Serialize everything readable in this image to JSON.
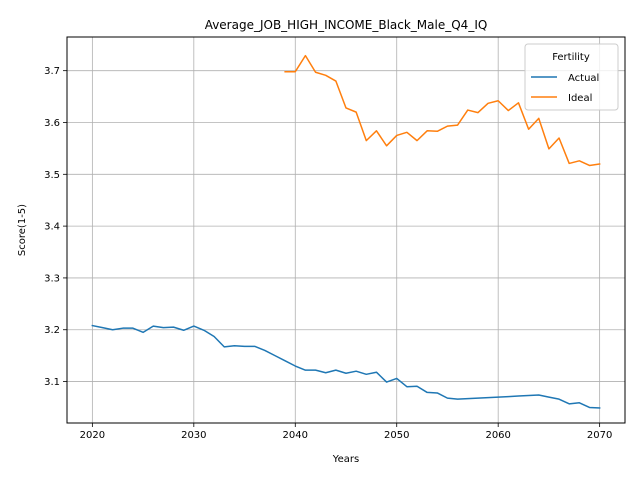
{
  "chart_data": {
    "type": "line",
    "title": "Average_JOB_HIGH_INCOME_Black_Male_Q4_IQ",
    "xlabel": "Years",
    "ylabel": "Score(1-5)",
    "xlim": [
      2017.5,
      2072.5
    ],
    "ylim": [
      3.02,
      3.765
    ],
    "xticks": [
      2020,
      2030,
      2040,
      2050,
      2060,
      2070
    ],
    "yticks": [
      3.1,
      3.2,
      3.3,
      3.4,
      3.5,
      3.6,
      3.7
    ],
    "xtick_labels": [
      "2020",
      "2030",
      "2040",
      "2050",
      "2060",
      "2070"
    ],
    "ytick_labels": [
      "3.1",
      "3.2",
      "3.3",
      "3.4",
      "3.5",
      "3.6",
      "3.7"
    ],
    "grid": true,
    "legend": {
      "title": "Fertility",
      "placement": "top-right"
    },
    "series": [
      {
        "name": "Actual",
        "color": "#1f77b4",
        "x": [
          2020,
          2021,
          2022,
          2023,
          2024,
          2025,
          2026,
          2027,
          2028,
          2029,
          2030,
          2031,
          2032,
          2033,
          2034,
          2035,
          2036,
          2037,
          2038,
          2039,
          2040,
          2041,
          2042,
          2043,
          2044,
          2045,
          2046,
          2047,
          2048,
          2049,
          2050,
          2051,
          2052,
          2053,
          2054,
          2055,
          2056,
          2057,
          2058,
          2059,
          2060,
          2061,
          2062,
          2063,
          2064,
          2065,
          2066,
          2067,
          2068,
          2069,
          2070
        ],
        "values": [
          3.208,
          3.204,
          3.2,
          3.203,
          3.203,
          3.195,
          3.207,
          3.204,
          3.205,
          3.199,
          3.207,
          3.199,
          3.187,
          3.167,
          3.169,
          3.168,
          3.168,
          3.16,
          3.15,
          3.14,
          3.13,
          3.122,
          3.122,
          3.117,
          3.122,
          3.116,
          3.12,
          3.114,
          3.118,
          3.099,
          3.106,
          3.09,
          3.091,
          3.079,
          3.078,
          3.068,
          3.066,
          3.067,
          3.068,
          3.069,
          3.07,
          3.071,
          3.072,
          3.073,
          3.074,
          3.07,
          3.066,
          3.057,
          3.059,
          3.05,
          3.049
        ]
      },
      {
        "name": "Ideal",
        "color": "#ff7f0e",
        "x": [
          2039,
          2040,
          2041,
          2042,
          2043,
          2044,
          2045,
          2046,
          2047,
          2048,
          2049,
          2050,
          2051,
          2052,
          2053,
          2054,
          2055,
          2056,
          2057,
          2058,
          2059,
          2060,
          2061,
          2062,
          2063,
          2064,
          2065,
          2066,
          2067,
          2068,
          2069,
          2070
        ],
        "values": [
          3.698,
          3.698,
          3.729,
          3.697,
          3.691,
          3.68,
          3.628,
          3.62,
          3.565,
          3.584,
          3.555,
          3.575,
          3.581,
          3.565,
          3.584,
          3.583,
          3.593,
          3.595,
          3.624,
          3.619,
          3.637,
          3.642,
          3.623,
          3.638,
          3.587,
          3.608,
          3.549,
          3.57,
          3.521,
          3.526,
          3.517,
          3.52
        ]
      }
    ]
  }
}
